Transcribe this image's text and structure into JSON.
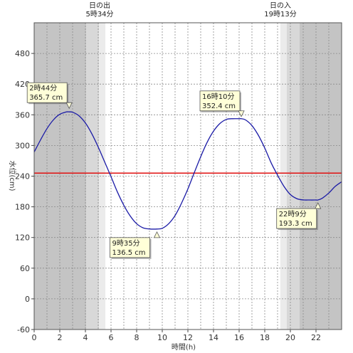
{
  "chart_data": {
    "type": "line",
    "xlabel": "時間(h)",
    "ylabel": "水位(cm)",
    "xlim": [
      0,
      24
    ],
    "ylim": [
      -60,
      540
    ],
    "x_ticks": [
      0,
      2,
      4,
      6,
      8,
      10,
      12,
      14,
      16,
      18,
      20,
      22
    ],
    "y_ticks": [
      -60,
      0,
      60,
      120,
      180,
      240,
      300,
      360,
      420,
      480
    ],
    "grid": true,
    "sunrise": {
      "label": "日の出",
      "time": "5時34分",
      "hour": 5.5667
    },
    "sunset": {
      "label": "日の入",
      "time": "19時13分",
      "hour": 19.2167
    },
    "reference_line": {
      "value": 246,
      "color": "#e01010"
    },
    "series": [
      {
        "color": "#1a1aa6",
        "x": [
          0,
          0.5,
          1,
          1.5,
          2,
          2.5,
          2.733,
          3,
          3.5,
          4,
          4.5,
          5,
          5.5,
          6,
          6.5,
          7,
          7.5,
          8,
          8.5,
          9,
          9.583,
          10,
          10.5,
          11,
          11.5,
          12,
          12.5,
          13,
          13.5,
          14,
          14.5,
          15,
          15.5,
          16,
          16.167,
          16.5,
          17,
          17.5,
          18,
          18.5,
          19,
          19.5,
          20,
          20.5,
          21,
          21.5,
          22,
          22.15,
          22.5,
          23,
          23.5,
          24
        ],
        "y": [
          287,
          311,
          333,
          350,
          361,
          365.5,
          365.7,
          365,
          358,
          344,
          323,
          297,
          268,
          239,
          209,
          183,
          162,
          147,
          139,
          136.7,
          136.5,
          138,
          147,
          163,
          187,
          215,
          247,
          278,
          306,
          328,
          343,
          351,
          352.4,
          352.4,
          352.4,
          350,
          339,
          320,
          295,
          266,
          242,
          220,
          204,
          196,
          193.5,
          193.3,
          193.3,
          193.3,
          197,
          207,
          220,
          229
        ]
      }
    ],
    "annotations": [
      {
        "time": "2時44分",
        "value": "365.7 cm",
        "x": 2.733,
        "y": 365.7
      },
      {
        "time": "9時35分",
        "value": "136.5 cm",
        "x": 9.583,
        "y": 136.5
      },
      {
        "time": "16時10分",
        "value": "352.4 cm",
        "x": 16.167,
        "y": 352.4
      },
      {
        "time": "22時9分",
        "value": "193.3 cm",
        "x": 22.15,
        "y": 193.3
      }
    ]
  }
}
